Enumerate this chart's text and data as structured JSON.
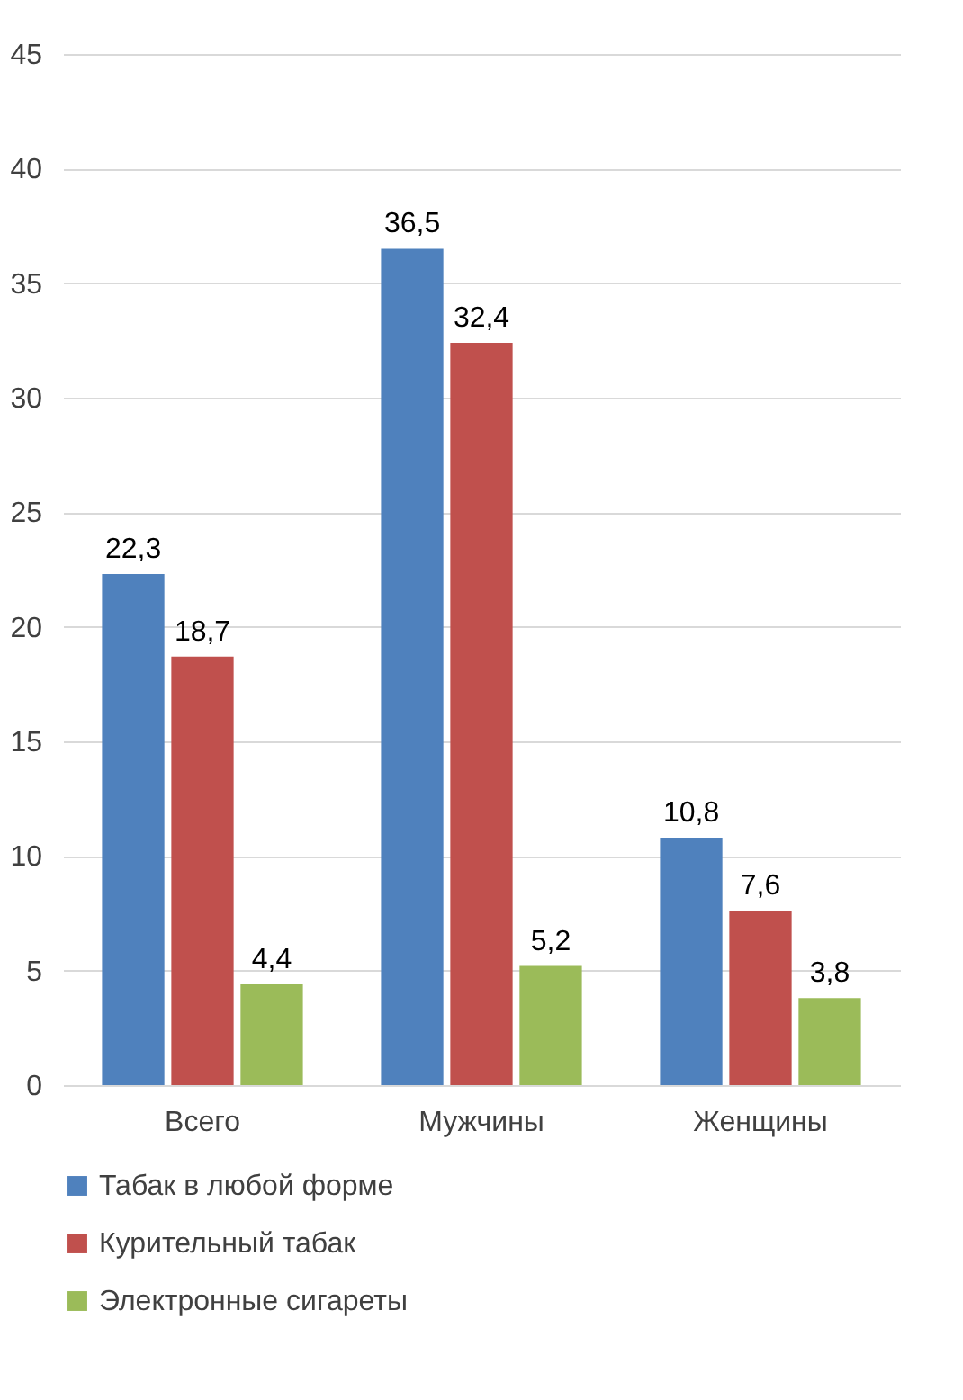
{
  "chart_data": {
    "type": "bar",
    "categories": [
      "Всего",
      "Мужчины",
      "Женщины"
    ],
    "series": [
      {
        "name": "Табак в любой форме",
        "color": "#4f81bd",
        "values": [
          22.3,
          36.5,
          10.8
        ],
        "value_labels": [
          "22,3",
          "36,5",
          "10,8"
        ]
      },
      {
        "name": "Курительный табак",
        "color": "#c0504d",
        "values": [
          18.7,
          32.4,
          7.6
        ],
        "value_labels": [
          "18,7",
          "32,4",
          "7,6"
        ]
      },
      {
        "name": "Электронные сигареты",
        "color": "#9bbb59",
        "values": [
          4.4,
          5.2,
          3.8
        ],
        "value_labels": [
          "4,4",
          "5,2",
          "3,8"
        ]
      }
    ],
    "ylim": [
      0,
      45
    ],
    "yticks": [
      0,
      5,
      10,
      15,
      20,
      25,
      30,
      35,
      40,
      45
    ],
    "grid": "y",
    "legend": "bottom"
  }
}
